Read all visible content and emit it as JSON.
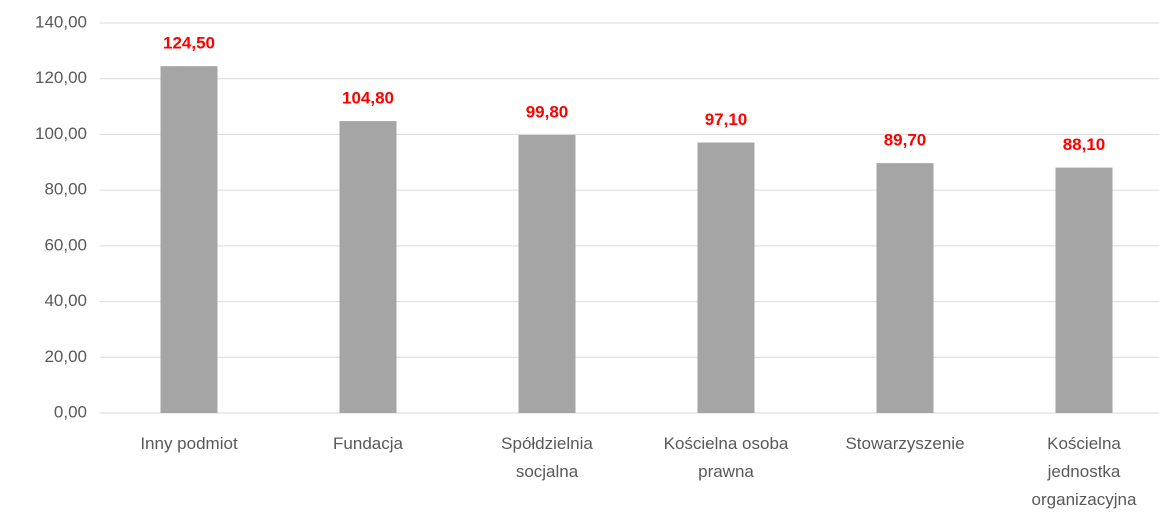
{
  "chart_data": {
    "type": "bar",
    "categories": [
      "Inny podmiot",
      "Fundacja",
      "Spółdzielnia socjalna",
      "Kościelna osoba prawna",
      "Stowarzyszenie",
      "Kościelna jednostka organizacyjna"
    ],
    "values": [
      124.5,
      104.8,
      99.8,
      97.1,
      89.7,
      88.1
    ],
    "value_labels": [
      "124,50",
      "104,80",
      "99,80",
      "97,10",
      "89,70",
      "88,10"
    ],
    "color": "#a5a5a5",
    "label_color": "#ff0000",
    "ylim": [
      0,
      140
    ],
    "yticks": [
      {
        "value": 0,
        "label": "0,00"
      },
      {
        "value": 20,
        "label": "20,00"
      },
      {
        "value": 40,
        "label": "40,00"
      },
      {
        "value": 60,
        "label": "60,00"
      },
      {
        "value": 80,
        "label": "80,00"
      },
      {
        "value": 100,
        "label": "100,00"
      },
      {
        "value": 120,
        "label": "120,00"
      },
      {
        "value": 140,
        "label": "140,00"
      }
    ],
    "grid": true
  }
}
